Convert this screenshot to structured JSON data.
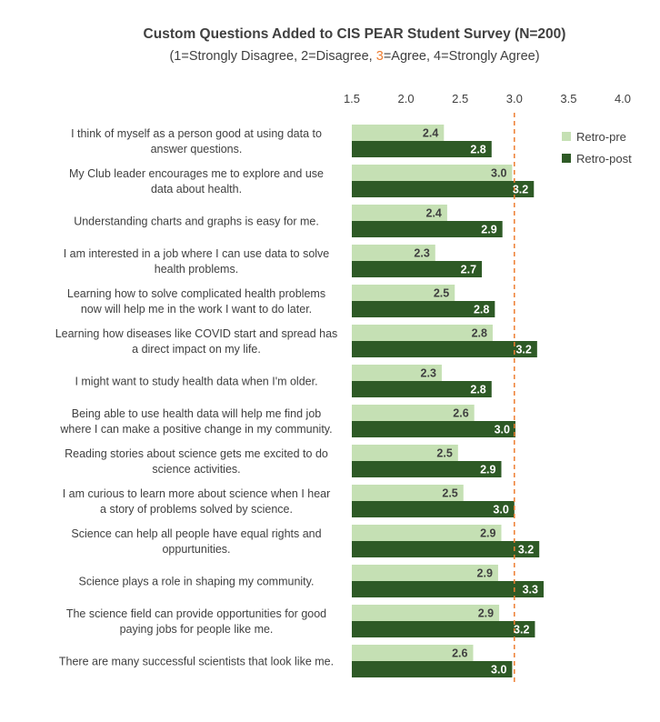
{
  "chart_data": {
    "type": "bar",
    "orientation": "horizontal",
    "title": "Custom Questions Added to CIS PEAR Student Survey (N=200)",
    "subtitle": {
      "before": "(1=Strongly Disagree, 2=Disagree, ",
      "highlight": "3",
      "after": "=Agree, 4=Strongly Agree)"
    },
    "xlim": [
      1.5,
      4.0
    ],
    "xticks": [
      "1.5",
      "2.0",
      "2.5",
      "3.0",
      "3.5",
      "4.0"
    ],
    "reference_line": 3.0,
    "categories": [
      [
        "I think of myself as a person good at using data to",
        "answer questions."
      ],
      [
        "My Club leader encourages me to explore and use",
        "data about health."
      ],
      [
        "Understanding charts and graphs is easy for me."
      ],
      [
        "I am interested in a job where I can use data to solve",
        "health problems."
      ],
      [
        "Learning how to solve complicated health problems",
        "now will help me in the work I want to do later."
      ],
      [
        "Learning how diseases like COVID start and spread has",
        "a direct impact on my life."
      ],
      [
        "I might want to study health data when I'm older."
      ],
      [
        "Being able to use health data will help me find job",
        "where I can make a positive change in my community."
      ],
      [
        "Reading stories about science gets me excited to do",
        "science activities."
      ],
      [
        "I am curious to learn more about science when I hear",
        "a story of problems solved by science."
      ],
      [
        "Science can help all people have equal rights and",
        "oppurtunities."
      ],
      [
        "Science plays a role in shaping my community."
      ],
      [
        "The science field can provide opportunities for good",
        "paying jobs for people like me."
      ],
      [
        "There are many successful scientists that look like me."
      ]
    ],
    "series": [
      {
        "name": "Retro-pre",
        "color": "#c5e0b4",
        "values": [
          2.35,
          2.98,
          2.38,
          2.27,
          2.45,
          2.8,
          2.33,
          2.63,
          2.48,
          2.53,
          2.88,
          2.85,
          2.86,
          2.62
        ],
        "labels": [
          "2.4",
          "3.0",
          "2.4",
          "2.3",
          "2.5",
          "2.8",
          "2.3",
          "2.6",
          "2.5",
          "2.5",
          "2.9",
          "2.9",
          "2.9",
          "2.6"
        ]
      },
      {
        "name": "Retro-post",
        "color": "#2e5a26",
        "values": [
          2.79,
          3.18,
          2.89,
          2.7,
          2.82,
          3.21,
          2.79,
          3.01,
          2.88,
          3.0,
          3.23,
          3.27,
          3.19,
          2.98
        ],
        "labels": [
          "2.8",
          "3.2",
          "2.9",
          "2.7",
          "2.8",
          "3.2",
          "2.8",
          "3.0",
          "2.9",
          "3.0",
          "3.2",
          "3.3",
          "3.2",
          "3.0"
        ]
      }
    ],
    "legend_position": "top-right",
    "reference_line_color": "#ed7d31"
  }
}
